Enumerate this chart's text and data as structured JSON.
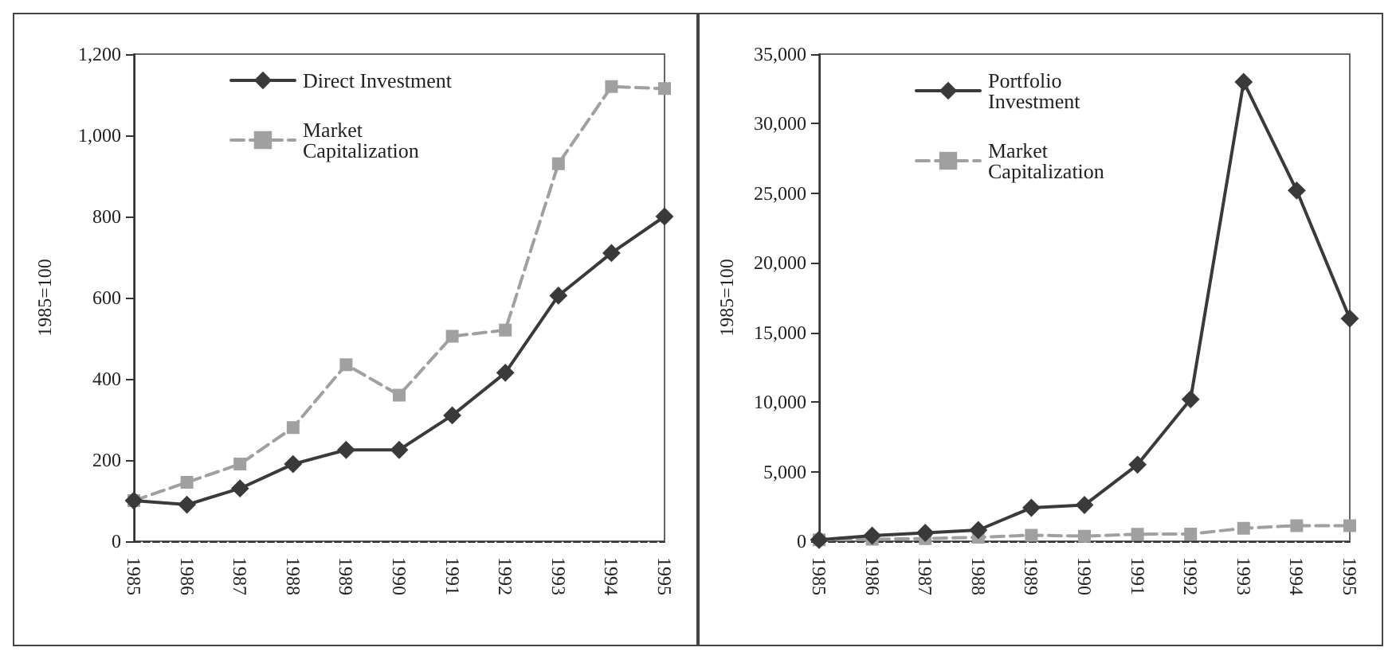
{
  "chart_data": [
    {
      "type": "line",
      "ylabel": "1985=100",
      "categories": [
        "1985",
        "1986",
        "1987",
        "1988",
        "1989",
        "1990",
        "1991",
        "1992",
        "1993",
        "1994",
        "1995"
      ],
      "series": [
        {
          "name": "Direct Investment",
          "color": "#3a3a3a",
          "marker": "diamond",
          "line_style": "solid",
          "values": [
            100,
            90,
            130,
            190,
            225,
            225,
            310,
            415,
            605,
            710,
            800
          ]
        },
        {
          "name": "Market Capitalization",
          "color": "#a0a0a0",
          "marker": "square",
          "line_style": "dashed",
          "values": [
            100,
            145,
            190,
            280,
            435,
            360,
            505,
            520,
            930,
            1120,
            1115
          ]
        }
      ],
      "ylim": [
        0,
        1200
      ],
      "yticks": [
        0,
        200,
        400,
        600,
        800,
        {
          "value": 1000,
          "label": "1,000"
        },
        {
          "value": 1200,
          "label": "1,200"
        }
      ],
      "grid": false,
      "legend": "top left"
    },
    {
      "type": "line",
      "ylabel": "1985=100",
      "categories": [
        "1985",
        "1986",
        "1987",
        "1988",
        "1989",
        "1990",
        "1991",
        "1992",
        "1993",
        "1994",
        "1995"
      ],
      "series": [
        {
          "name": "Portfolio Investment",
          "color": "#3a3a3a",
          "marker": "diamond",
          "line_style": "solid",
          "values": [
            100,
            400,
            600,
            800,
            2400,
            2600,
            5500,
            10200,
            33000,
            25200,
            16000
          ]
        },
        {
          "name": "Market Capitalization",
          "color": "#a0a0a0",
          "marker": "square",
          "line_style": "dashed",
          "values": [
            100,
            145,
            190,
            280,
            435,
            360,
            505,
            520,
            930,
            1120,
            1115
          ]
        }
      ],
      "ylim": [
        0,
        35000
      ],
      "yticks": [
        0,
        {
          "value": 5000,
          "label": "5,000"
        },
        {
          "value": 10000,
          "label": "10,000"
        },
        {
          "value": 15000,
          "label": "15,000"
        },
        {
          "value": 20000,
          "label": "20,000"
        },
        {
          "value": 25000,
          "label": "25,000"
        },
        {
          "value": 30000,
          "label": "30,000"
        },
        {
          "value": 35000,
          "label": "35,000"
        }
      ],
      "grid": false,
      "legend": "top left"
    }
  ]
}
